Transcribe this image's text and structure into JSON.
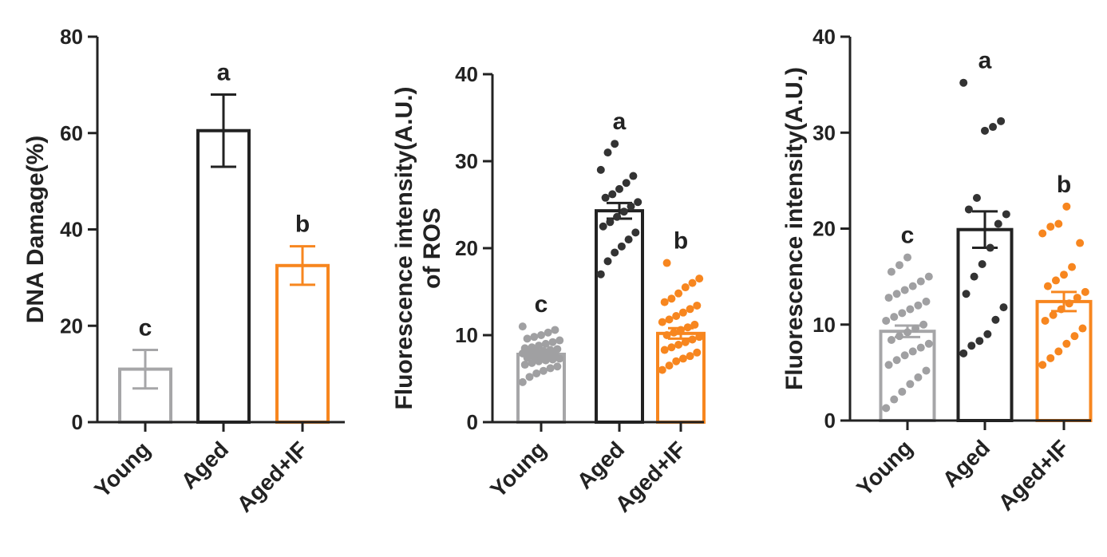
{
  "chart_data": [
    {
      "type": "bar",
      "y_label": [
        "DNA Damage(%)"
      ],
      "categories": [
        "Young",
        "Aged",
        "Aged+IF"
      ],
      "values": [
        11,
        60.5,
        32.5
      ],
      "errors": [
        4,
        7.5,
        4
      ],
      "letters": [
        "c",
        "a",
        "b"
      ],
      "colors": [
        "#a6a6a8",
        "#222222",
        "#f7861f"
      ],
      "ylim": [
        0,
        80
      ],
      "yticks": [
        0,
        20,
        40,
        60,
        80
      ]
    },
    {
      "type": "bar",
      "y_label": [
        "Fluorescence intensity(A.U.)",
        "of ROS"
      ],
      "categories": [
        "Young",
        "Aged",
        "Aged+IF"
      ],
      "values": [
        7.8,
        24.3,
        10.2
      ],
      "errors": [
        0.4,
        0.9,
        0.6
      ],
      "letters": [
        "c",
        "a",
        "b"
      ],
      "colors": [
        "#a6a6a8",
        "#222222",
        "#f7861f"
      ],
      "point_colors": [
        "#a0a0a2",
        "#333333",
        "#f7861f"
      ],
      "points": [
        [
          4.6,
          5.2,
          5.6,
          5.9,
          6.2,
          6.4,
          6.6,
          6.8,
          7.0,
          7.1,
          7.2,
          7.3,
          7.4,
          7.5,
          7.6,
          7.7,
          7.8,
          7.9,
          8.0,
          8.1,
          8.2,
          8.3,
          8.4,
          8.5,
          8.6,
          8.8,
          9.0,
          9.2,
          9.4,
          9.6,
          9.8,
          10.0,
          10.3,
          10.6,
          11.0
        ],
        [
          17.0,
          18.5,
          19.5,
          20.2,
          21.0,
          21.8,
          22.5,
          23.0,
          23.6,
          24.2,
          24.8,
          25.3,
          25.8,
          26.2,
          26.8,
          27.5,
          28.3,
          29.0,
          31.0,
          32.0
        ],
        [
          6.0,
          6.5,
          7.0,
          7.3,
          7.6,
          8.0,
          8.3,
          8.6,
          8.9,
          9.2,
          9.5,
          9.8,
          10.0,
          10.3,
          10.6,
          10.9,
          11.2,
          11.5,
          11.8,
          12.2,
          12.6,
          13.0,
          13.4,
          13.8,
          14.2,
          14.8,
          15.5,
          16.0,
          16.5,
          18.3
        ]
      ],
      "ylim": [
        0,
        40
      ],
      "yticks": [
        0,
        10,
        20,
        30,
        40
      ]
    },
    {
      "type": "bar",
      "y_label": [
        "Fluorescence intensity(A.U.)"
      ],
      "categories": [
        "Young",
        "Aged",
        "Aged+IF"
      ],
      "values": [
        9.3,
        19.9,
        12.4
      ],
      "errors": [
        0.6,
        1.9,
        1.0
      ],
      "letters": [
        "c",
        "a",
        "b"
      ],
      "colors": [
        "#a6a6a8",
        "#222222",
        "#f7861f"
      ],
      "point_colors": [
        "#a0a0a2",
        "#333333",
        "#f7861f"
      ],
      "points": [
        [
          1.3,
          2.2,
          3.0,
          3.8,
          4.5,
          5.2,
          5.8,
          6.3,
          6.8,
          7.2,
          7.6,
          8.0,
          8.4,
          8.8,
          9.2,
          9.6,
          10.0,
          10.4,
          10.8,
          11.2,
          11.6,
          12.0,
          12.4,
          12.8,
          13.2,
          13.6,
          14.0,
          14.5,
          15.0,
          15.5,
          16.2,
          17.0
        ],
        [
          7.0,
          7.8,
          8.3,
          9.0,
          10.5,
          11.8,
          13.2,
          15.0,
          16.3,
          18.0,
          20.5,
          21.5,
          22.0,
          23.2,
          30.2,
          30.6,
          31.2,
          35.2
        ],
        [
          5.8,
          6.5,
          7.2,
          8.0,
          8.8,
          9.6,
          10.4,
          11.0,
          11.6,
          12.2,
          12.8,
          13.4,
          14.0,
          14.6,
          15.2,
          16.0,
          18.5,
          19.5,
          20.2,
          20.5,
          22.3
        ]
      ],
      "ylim": [
        0,
        40
      ],
      "yticks": [
        0,
        10,
        20,
        30,
        40
      ]
    }
  ]
}
